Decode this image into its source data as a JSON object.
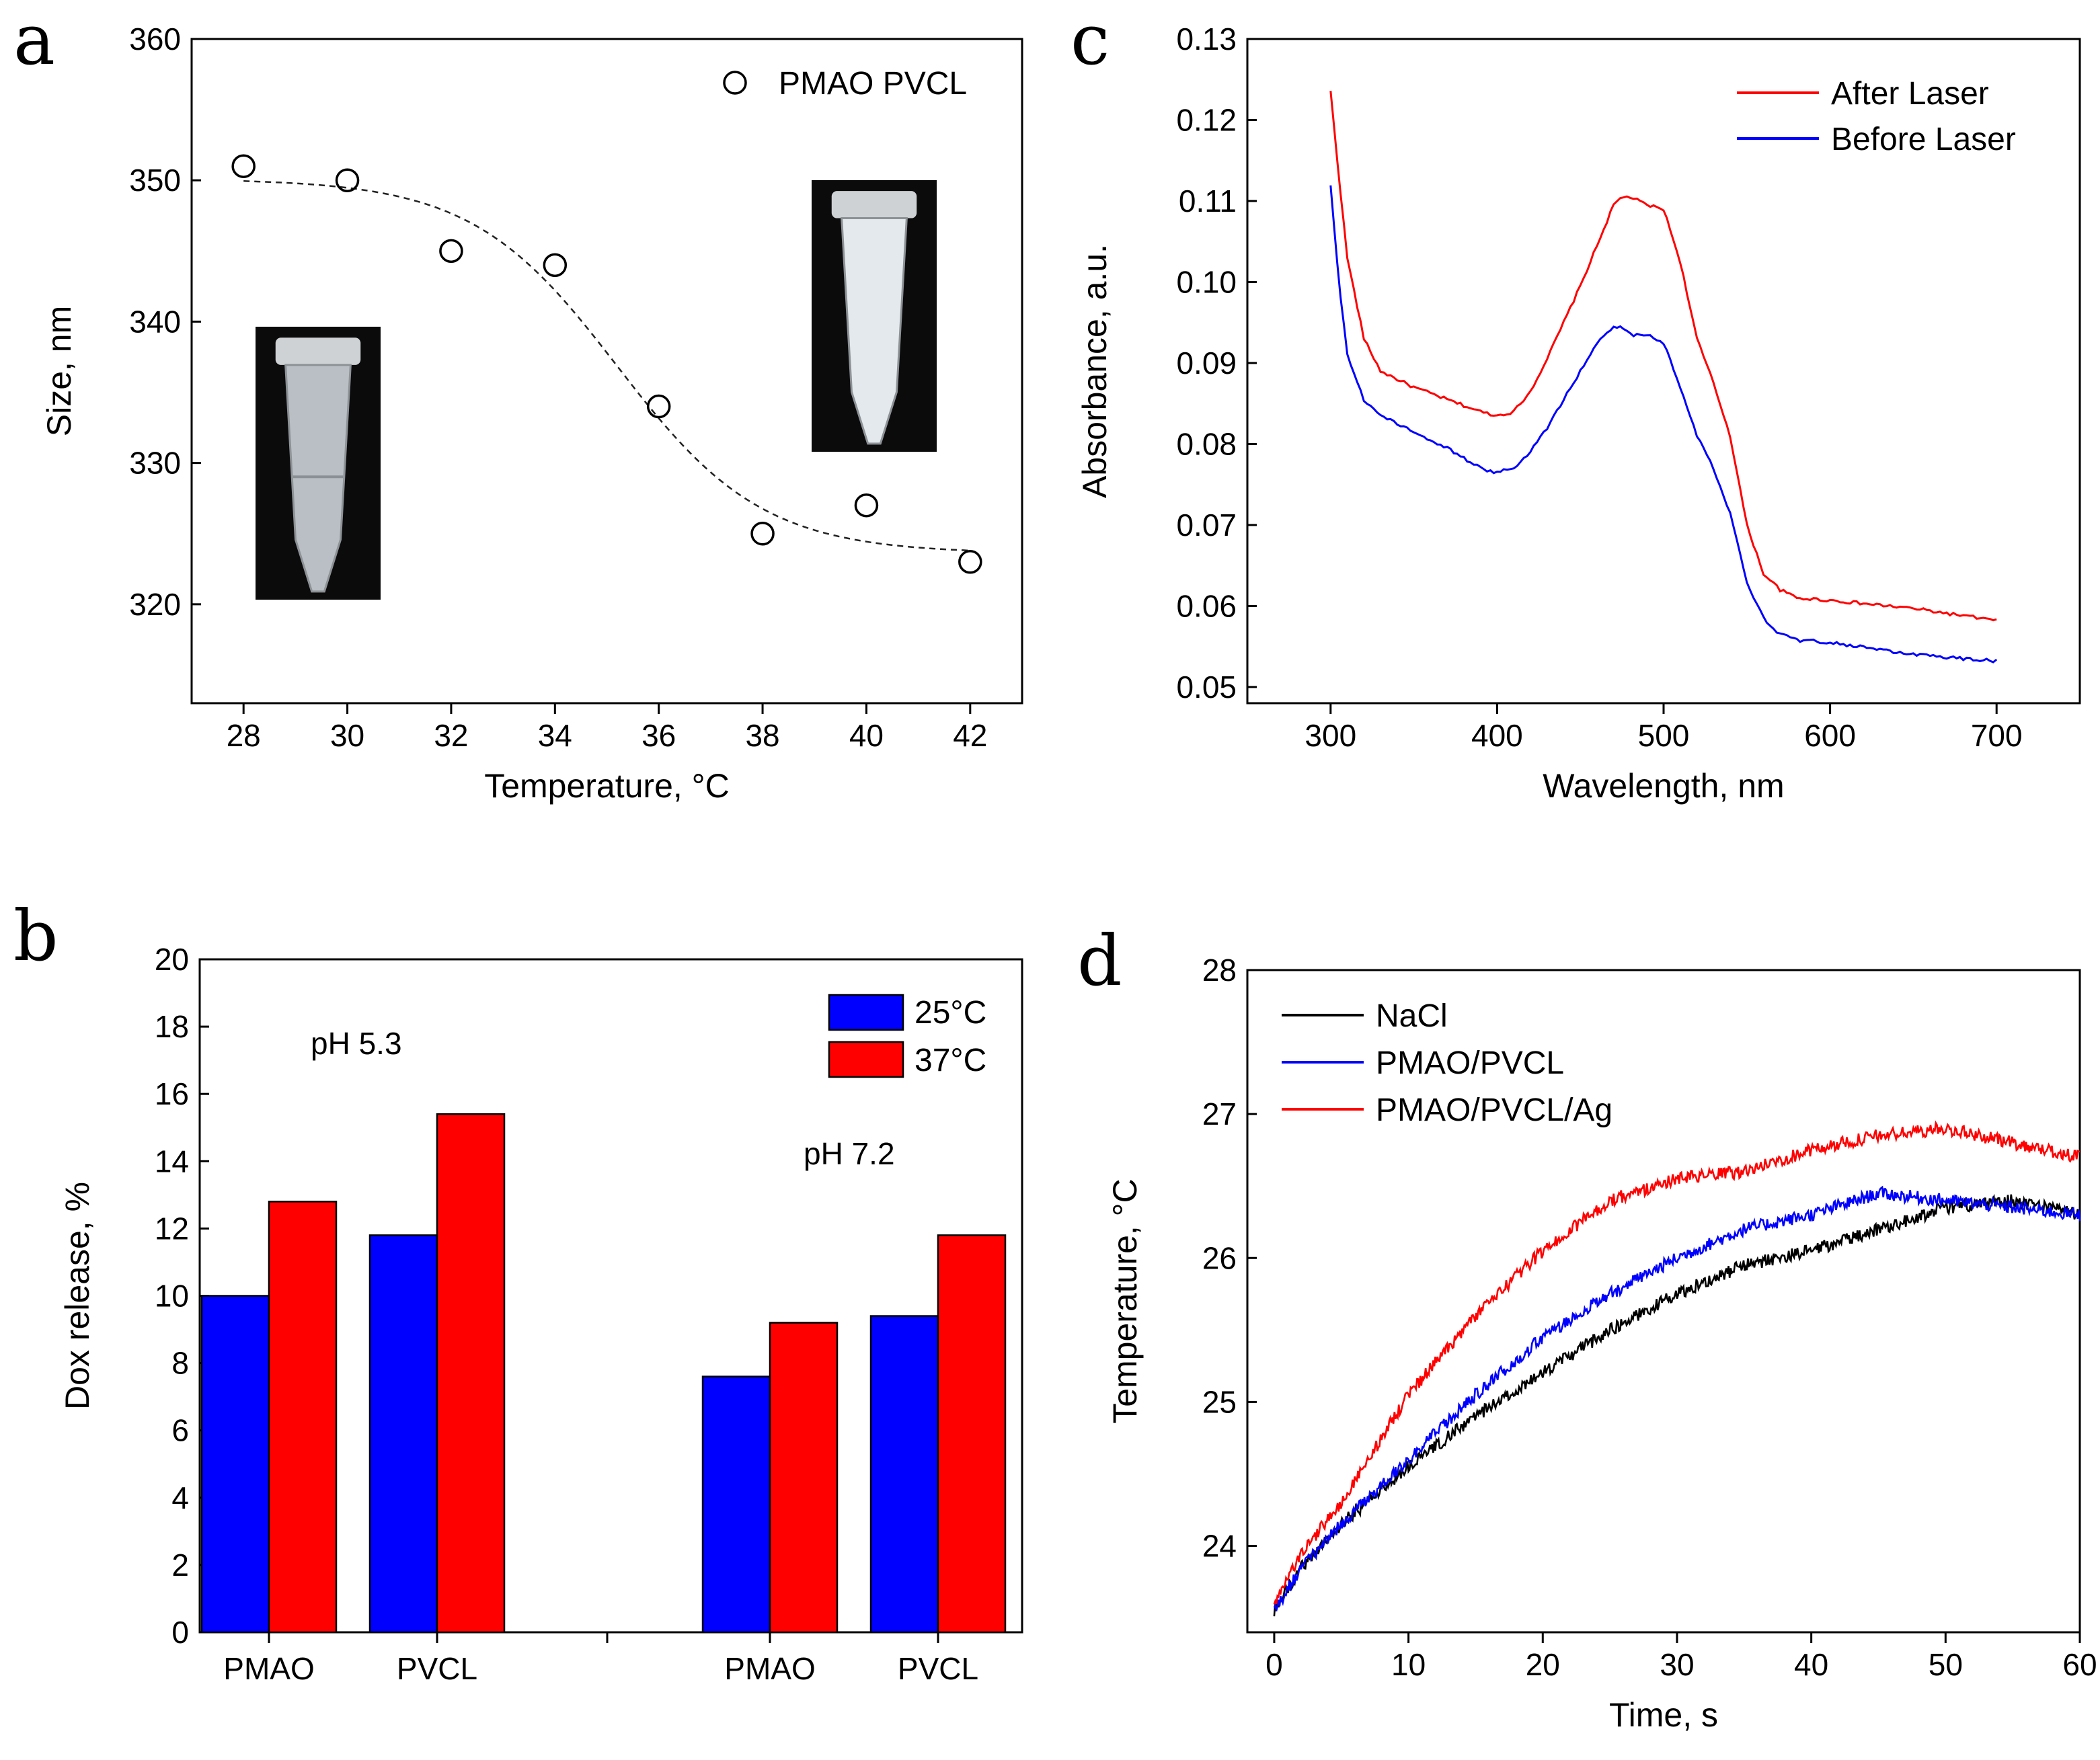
{
  "colors": {
    "blue": "#0000ff",
    "red": "#ff0000",
    "black": "#000000"
  },
  "chart_data": [
    {
      "panel": "a",
      "type": "scatter",
      "xlabel": "Temperature, °C",
      "ylabel": "Size, nm",
      "xlim": [
        27,
        43
      ],
      "ylim": [
        313,
        360
      ],
      "xticks": [
        28,
        30,
        32,
        34,
        36,
        38,
        40,
        42
      ],
      "yticks": [
        320,
        330,
        340,
        350,
        360
      ],
      "legend": [
        "PMAO PVCL"
      ],
      "legend_position": "top-right",
      "series": [
        {
          "name": "PMAO PVCL",
          "marker": "open-circle",
          "x": [
            28,
            30,
            32,
            34,
            36,
            38,
            40,
            42
          ],
          "y": [
            351,
            350,
            345,
            344,
            334,
            325,
            327,
            323
          ]
        }
      ],
      "fit": {
        "style": "dashed",
        "model": "sigmoid",
        "low": 323.6,
        "high": 350.1,
        "center": 35.2,
        "width": 1.4
      },
      "insets": [
        "tube-clear",
        "tube-turbid"
      ]
    },
    {
      "panel": "b",
      "type": "bar",
      "ylabel": "Dox release, %",
      "ylim": [
        0,
        20
      ],
      "yticks": [
        0,
        2,
        4,
        6,
        8,
        10,
        12,
        14,
        16,
        18,
        20
      ],
      "groups": [
        {
          "label": "pH 5.3",
          "categories": [
            "PMAO",
            "PVCL"
          ]
        },
        {
          "label": "pH 7.2",
          "categories": [
            "PMAO",
            "PVCL"
          ]
        }
      ],
      "categories": [
        "PMAO",
        "PVCL",
        "PMAO",
        "PVCL"
      ],
      "series": [
        {
          "name": "25°C",
          "values": [
            10.0,
            11.8,
            7.6,
            9.4
          ]
        },
        {
          "name": "37°C",
          "values": [
            12.8,
            15.4,
            9.2,
            11.8
          ]
        }
      ],
      "legend_position": "top-right"
    },
    {
      "panel": "c",
      "type": "line",
      "xlabel": "Wavelength, nm",
      "ylabel": "Absorbance, a.u.",
      "xlim": [
        250,
        750
      ],
      "ylim": [
        0.048,
        0.13
      ],
      "xticks": [
        300,
        400,
        500,
        600,
        700
      ],
      "yticks": [
        0.05,
        0.06,
        0.07,
        0.08,
        0.09,
        0.1,
        0.11,
        0.12,
        0.13
      ],
      "ytick_labels": [
        "0.05",
        "0.06",
        "0.07",
        "0.08",
        "0.09",
        "0.10",
        "0.11",
        "0.12",
        "0.13"
      ],
      "legend_position": "top-right",
      "series": [
        {
          "name": "After Laser",
          "x": [
            300,
            305,
            310,
            320,
            330,
            350,
            370,
            390,
            400,
            410,
            420,
            430,
            440,
            450,
            460,
            470,
            475,
            480,
            490,
            500,
            510,
            520,
            530,
            540,
            550,
            560,
            570,
            580,
            600,
            650,
            700
          ],
          "y": [
            0.1235,
            0.113,
            0.103,
            0.093,
            0.089,
            0.087,
            0.0855,
            0.084,
            0.0835,
            0.084,
            0.0865,
            0.0905,
            0.095,
            0.0995,
            0.1045,
            0.1095,
            0.1105,
            0.1105,
            0.1095,
            0.109,
            0.1025,
            0.093,
            0.0875,
            0.081,
            0.07,
            0.064,
            0.062,
            0.061,
            0.0607,
            0.0597,
            0.0582
          ]
        },
        {
          "name": "Before Laser",
          "x": [
            300,
            305,
            310,
            320,
            330,
            350,
            370,
            390,
            400,
            410,
            420,
            430,
            440,
            450,
            460,
            470,
            475,
            480,
            490,
            500,
            510,
            520,
            530,
            540,
            550,
            560,
            570,
            580,
            600,
            650,
            700
          ],
          "y": [
            0.112,
            0.1,
            0.091,
            0.0855,
            0.0835,
            0.0815,
            0.0795,
            0.077,
            0.0765,
            0.077,
            0.079,
            0.082,
            0.0855,
            0.089,
            0.0925,
            0.0945,
            0.0945,
            0.0935,
            0.0935,
            0.0925,
            0.087,
            0.081,
            0.077,
            0.0715,
            0.063,
            0.0585,
            0.0565,
            0.0558,
            0.0555,
            0.054,
            0.0532
          ]
        }
      ]
    },
    {
      "panel": "d",
      "type": "line",
      "xlabel": "Time, s",
      "ylabel": "Temperature, °C",
      "xlim": [
        -2,
        60
      ],
      "ylim": [
        23.4,
        28
      ],
      "xticks": [
        0,
        10,
        20,
        30,
        40,
        50,
        60
      ],
      "yticks": [
        24,
        25,
        26,
        27,
        28
      ],
      "legend_position": "top-left",
      "series": [
        {
          "name": "NaCl",
          "x": [
            0,
            2,
            5,
            10,
            15,
            20,
            25,
            30,
            35,
            40,
            45,
            50,
            55,
            60
          ],
          "y": [
            23.55,
            23.85,
            24.15,
            24.55,
            24.9,
            25.2,
            25.5,
            25.75,
            25.95,
            26.05,
            26.2,
            26.35,
            26.4,
            26.3
          ]
        },
        {
          "name": "PMAO/PVCL",
          "x": [
            0,
            2,
            5,
            10,
            15,
            20,
            25,
            30,
            35,
            40,
            45,
            50,
            55,
            60
          ],
          "y": [
            23.55,
            23.85,
            24.15,
            24.6,
            25.05,
            25.45,
            25.75,
            26.0,
            26.2,
            26.3,
            26.45,
            26.4,
            26.35,
            26.3
          ]
        },
        {
          "name": "PMAO/PVCL/Ag",
          "x": [
            0,
            2,
            5,
            10,
            15,
            20,
            25,
            30,
            35,
            40,
            45,
            50,
            55,
            60
          ],
          "y": [
            23.6,
            23.95,
            24.3,
            25.05,
            25.6,
            26.05,
            26.4,
            26.55,
            26.6,
            26.75,
            26.85,
            26.9,
            26.8,
            26.7
          ]
        }
      ]
    }
  ],
  "panel_labels": {
    "a": "a",
    "b": "b",
    "c": "c",
    "d": "d"
  },
  "annotations": {
    "ph_low": "pH 5.3",
    "ph_high": "pH 7.2"
  }
}
